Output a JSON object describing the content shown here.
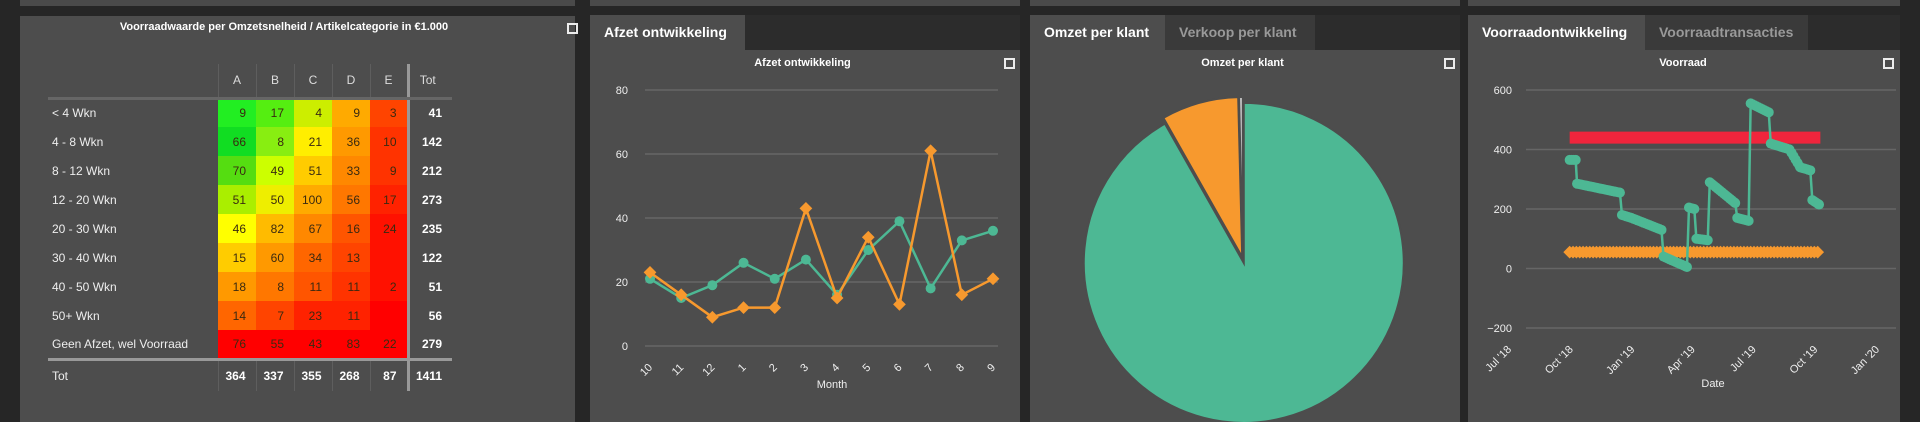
{
  "heatmap": {
    "title": "Voorraadwaarde per Omzetsnelheid / Artikelcategorie in €1.000",
    "columns": [
      "A",
      "B",
      "C",
      "D",
      "E"
    ],
    "total_label": "Tot",
    "rows": [
      {
        "label": "< 4 Wkn",
        "values": [
          "9",
          "17",
          "4",
          "9",
          "3"
        ],
        "colors": [
          "#22ee22",
          "#55ee11",
          "#ccee00",
          "#ffaa00",
          "#ff4400"
        ],
        "total": "41"
      },
      {
        "label": "4 - 8 Wkn",
        "values": [
          "66",
          "8",
          "21",
          "36",
          "10"
        ],
        "colors": [
          "#11dd22",
          "#88ee11",
          "#ffee00",
          "#ff9900",
          "#ff3300"
        ],
        "total": "142"
      },
      {
        "label": "8 - 12 Wkn",
        "values": [
          "70",
          "49",
          "51",
          "33",
          "9"
        ],
        "colors": [
          "#55dd11",
          "#ccff00",
          "#ffcc00",
          "#ff8800",
          "#ff3300"
        ],
        "total": "212"
      },
      {
        "label": "12 - 20 Wkn",
        "values": [
          "51",
          "50",
          "100",
          "56",
          "17"
        ],
        "colors": [
          "#aaee00",
          "#eeee00",
          "#ffaa00",
          "#ff7700",
          "#ff2200"
        ],
        "total": "273"
      },
      {
        "label": "20 - 30 Wkn",
        "values": [
          "46",
          "82",
          "67",
          "16",
          "24"
        ],
        "colors": [
          "#ffff00",
          "#ffbb00",
          "#ff8800",
          "#ff5500",
          "#ff1100"
        ],
        "total": "235"
      },
      {
        "label": "30 - 40 Wkn",
        "values": [
          "15",
          "60",
          "34",
          "13",
          ""
        ],
        "colors": [
          "#ffcc00",
          "#ff9900",
          "#ff6600",
          "#ff4400",
          "#ff1100"
        ],
        "total": "122"
      },
      {
        "label": "40 - 50 Wkn",
        "values": [
          "18",
          "8",
          "11",
          "11",
          "2"
        ],
        "colors": [
          "#ff9900",
          "#ff7700",
          "#ff5500",
          "#ff3300",
          "#ff1100"
        ],
        "total": "51"
      },
      {
        "label": "50+ Wkn",
        "values": [
          "14",
          "7",
          "23",
          "11",
          ""
        ],
        "colors": [
          "#ff6600",
          "#ff4400",
          "#ff2200",
          "#ff2200",
          "#ff0000"
        ],
        "total": "56"
      },
      {
        "label": "Geen Afzet, wel Voorraad",
        "values": [
          "76",
          "55",
          "43",
          "83",
          "22"
        ],
        "colors": [
          "#ff0000",
          "#ff0000",
          "#ff0000",
          "#ff0000",
          "#ff0000"
        ],
        "total": "279"
      }
    ],
    "totals": {
      "label": "Tot",
      "values": [
        "364",
        "337",
        "355",
        "268",
        "87"
      ],
      "grand": "1411"
    }
  },
  "panels": {
    "afzet": {
      "tabs": [
        "Afzet ontwikkeling"
      ]
    },
    "omzet": {
      "tabs": [
        "Omzet per klant",
        "Verkoop per klant"
      ]
    },
    "voorraad": {
      "tabs": [
        "Voorraadontwikkeling",
        "Voorraadtransacties"
      ]
    }
  },
  "colors": {
    "teal": "#4db894",
    "orange": "#f7992e",
    "red": "#f0253c",
    "gray": "#bbbbbb"
  },
  "chart_data": [
    {
      "type": "line",
      "title": "Afzet ontwikkeling",
      "xlabel": "Month",
      "ylabel": "",
      "ylim": [
        0,
        80
      ],
      "yticks": [
        "0",
        "20",
        "40",
        "60",
        "80"
      ],
      "categories": [
        "10",
        "11",
        "12",
        "1",
        "2",
        "3",
        "4",
        "5",
        "6",
        "7",
        "8",
        "9"
      ],
      "series": [
        {
          "name": "teal",
          "values": [
            21,
            15,
            19,
            26,
            21,
            27,
            16,
            30,
            39,
            18,
            33,
            36
          ]
        },
        {
          "name": "orange",
          "values": [
            23,
            16,
            9,
            12,
            12,
            43,
            15,
            34,
            13,
            61,
            16,
            21
          ]
        }
      ]
    },
    {
      "type": "pie",
      "title": "Omzet per klant",
      "slices": [
        {
          "name": "teal",
          "value": 91.8
        },
        {
          "name": "orange",
          "value": 7.8
        },
        {
          "name": "gray",
          "value": 0.4
        }
      ]
    },
    {
      "type": "line",
      "title": "Voorraad",
      "xlabel": "Date",
      "ylim": [
        -200,
        600
      ],
      "yticks": [
        "−200",
        "0",
        "200",
        "400",
        "600"
      ],
      "xticks": [
        {
          "label": "Jul '18",
          "date": "2018-07-01"
        },
        {
          "label": "Oct '18",
          "date": "2018-10-01"
        },
        {
          "label": "Jan '19",
          "date": "2019-01-01"
        },
        {
          "label": "Apr '19",
          "date": "2019-04-01"
        },
        {
          "label": "Jul '19",
          "date": "2019-07-01"
        },
        {
          "label": "Oct '19",
          "date": "2019-10-01"
        },
        {
          "label": "Jan '20",
          "date": "2020-01-01"
        }
      ],
      "xlim": [
        "2018-07-01",
        "2020-01-01"
      ],
      "series": [
        {
          "name": "voorraad",
          "points": [
            [
              "2018-10-01",
              365
            ],
            [
              "2018-10-10",
              365
            ],
            [
              "2018-10-12",
              285
            ],
            [
              "2018-12-15",
              255
            ],
            [
              "2018-12-18",
              180
            ],
            [
              "2019-01-01",
              170
            ],
            [
              "2019-02-15",
              130
            ],
            [
              "2019-02-18",
              40
            ],
            [
              "2019-03-25",
              5
            ],
            [
              "2019-03-28",
              205
            ],
            [
              "2019-04-05",
              200
            ],
            [
              "2019-04-08",
              100
            ],
            [
              "2019-04-25",
              95
            ],
            [
              "2019-04-28",
              290
            ],
            [
              "2019-06-05",
              220
            ],
            [
              "2019-06-08",
              170
            ],
            [
              "2019-06-25",
              160
            ],
            [
              "2019-06-28",
              555
            ],
            [
              "2019-07-25",
              525
            ],
            [
              "2019-07-28",
              420
            ],
            [
              "2019-08-25",
              400
            ],
            [
              "2019-09-10",
              340
            ],
            [
              "2019-09-25",
              330
            ],
            [
              "2019-09-28",
              230
            ],
            [
              "2019-10-08",
              215
            ]
          ]
        },
        {
          "name": "minimum",
          "value": 55,
          "from": "2018-10-01",
          "to": "2019-10-08"
        },
        {
          "name": "maximum",
          "value": 440,
          "from": "2018-10-01",
          "to": "2019-10-10"
        }
      ]
    }
  ]
}
